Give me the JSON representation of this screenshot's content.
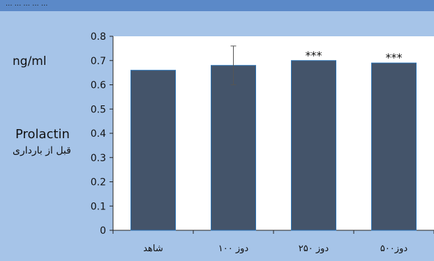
{
  "header_fragment": "... ... ... ... ...",
  "side_labels": {
    "unit": "ng/ml",
    "measure": "Prolactin",
    "measure_sub": "قبل از بارداری"
  },
  "colors": {
    "background": "#a6c4e8",
    "plot_area": "#ffffff",
    "bar_fill": "#44546a",
    "bar_edge": "#2e75b6",
    "error_bar": "#555555"
  },
  "chart_data": {
    "type": "bar",
    "title": "",
    "xlabel": "",
    "ylabel": "ng/ml",
    "categories": [
      "شاهد",
      "دوز ۱۰۰",
      "دوز ۲۵۰",
      "دوز۵۰۰"
    ],
    "values": [
      0.66,
      0.68,
      0.7,
      0.69
    ],
    "error_bars": [
      0,
      0.08,
      0,
      0
    ],
    "annotations": [
      "",
      "",
      "***",
      "***"
    ],
    "ylim": [
      0,
      0.8
    ],
    "yticks": [
      "0",
      "0.1",
      "0.2",
      "0.3",
      "0.4",
      "0.5",
      "0.6",
      "0.7",
      "0.8"
    ],
    "grid": false,
    "legend": "none"
  }
}
